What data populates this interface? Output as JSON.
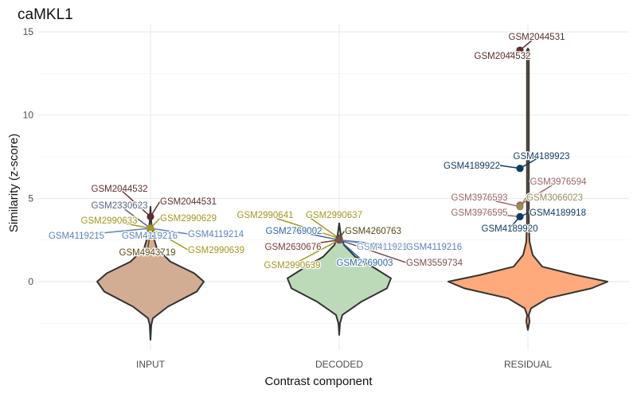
{
  "chart_data": {
    "type": "violin",
    "title": "caMKL1",
    "xlabel": "Contrast component",
    "ylabel": "Similarity (z-score)",
    "categories": [
      "INPUT",
      "DECODED",
      "RESIDUAL"
    ],
    "category_colors": {
      "INPUT": "#d2ad94",
      "DECODED": "#bcdab8",
      "RESIDUAL": "#ffaa7d"
    },
    "ylim": [
      -4,
      15
    ],
    "yticks": [
      0,
      5,
      10,
      15
    ],
    "grid": true,
    "points": [
      {
        "group": "INPUT",
        "label": "GSM2044532",
        "y": 3.9,
        "color": "#5c2f2f"
      },
      {
        "group": "INPUT",
        "label": "GSM2044531",
        "y": 3.9,
        "color": "#5c2f2f"
      },
      {
        "group": "INPUT",
        "label": "GSM2330623",
        "y": 3.2,
        "color": "#5a6585"
      },
      {
        "group": "INPUT",
        "label": "GSM2990633",
        "y": 3.2,
        "color": "#a39725"
      },
      {
        "group": "INPUT",
        "label": "GSM2990629",
        "y": 3.2,
        "color": "#a39725"
      },
      {
        "group": "INPUT",
        "label": "GSM4119215",
        "y": 3.2,
        "color": "#5b84b5"
      },
      {
        "group": "INPUT",
        "label": "GSM4119216",
        "y": 3.2,
        "color": "#5b84b5"
      },
      {
        "group": "INPUT",
        "label": "GSM4119214",
        "y": 3.2,
        "color": "#5b84b5"
      },
      {
        "group": "INPUT",
        "label": "GSM4943719",
        "y": 3.1,
        "color": "#5a4a12"
      },
      {
        "group": "INPUT",
        "label": "GSM2990639",
        "y": 3.2,
        "color": "#a39725"
      },
      {
        "group": "DECODED",
        "label": "GSM2990641",
        "y": 2.6,
        "color": "#a39725"
      },
      {
        "group": "DECODED",
        "label": "GSM2990637",
        "y": 2.6,
        "color": "#a39725"
      },
      {
        "group": "DECODED",
        "label": "GSM2769002",
        "y": 2.5,
        "color": "#2f6aa0"
      },
      {
        "group": "DECODED",
        "label": "GSM4260763",
        "y": 2.6,
        "color": "#5a4a12"
      },
      {
        "group": "DECODED",
        "label": "GSM2630676",
        "y": 2.5,
        "color": "#7a3838"
      },
      {
        "group": "DECODED",
        "label": "GSM4119214",
        "y": 2.5,
        "color": "#6f93bf"
      },
      {
        "group": "DECODED",
        "label": "GSM4119216",
        "y": 2.5,
        "color": "#5b84b5"
      },
      {
        "group": "DECODED",
        "label": "GSM2990639",
        "y": 2.5,
        "color": "#a39725"
      },
      {
        "group": "DECODED",
        "label": "GSM2769003",
        "y": 2.5,
        "color": "#2f6aa0"
      },
      {
        "group": "DECODED",
        "label": "GSM3559734",
        "y": 2.5,
        "color": "#7a5050"
      },
      {
        "group": "RESIDUAL",
        "label": "GSM2044531",
        "y": 13.9,
        "color": "#5c2f2f"
      },
      {
        "group": "RESIDUAL",
        "label": "GSM2044532",
        "y": 13.9,
        "color": "#5c2f2f"
      },
      {
        "group": "RESIDUAL",
        "label": "GSM4189923",
        "y": 6.8,
        "color": "#0f3b5f"
      },
      {
        "group": "RESIDUAL",
        "label": "GSM4189922",
        "y": 6.8,
        "color": "#0f3b5f"
      },
      {
        "group": "RESIDUAL",
        "label": "GSM3976594",
        "y": 4.6,
        "color": "#9a6666"
      },
      {
        "group": "RESIDUAL",
        "label": "GSM3976593",
        "y": 4.5,
        "color": "#9a6666"
      },
      {
        "group": "RESIDUAL",
        "label": "GSM3066023",
        "y": 4.5,
        "color": "#9a8a5a"
      },
      {
        "group": "RESIDUAL",
        "label": "GSM3976595",
        "y": 3.9,
        "color": "#9a6666"
      },
      {
        "group": "RESIDUAL",
        "label": "GSM4189918",
        "y": 3.9,
        "color": "#0f3b5f"
      },
      {
        "group": "RESIDUAL",
        "label": "GSM4189920",
        "y": 3.9,
        "color": "#0f3b5f"
      }
    ]
  }
}
